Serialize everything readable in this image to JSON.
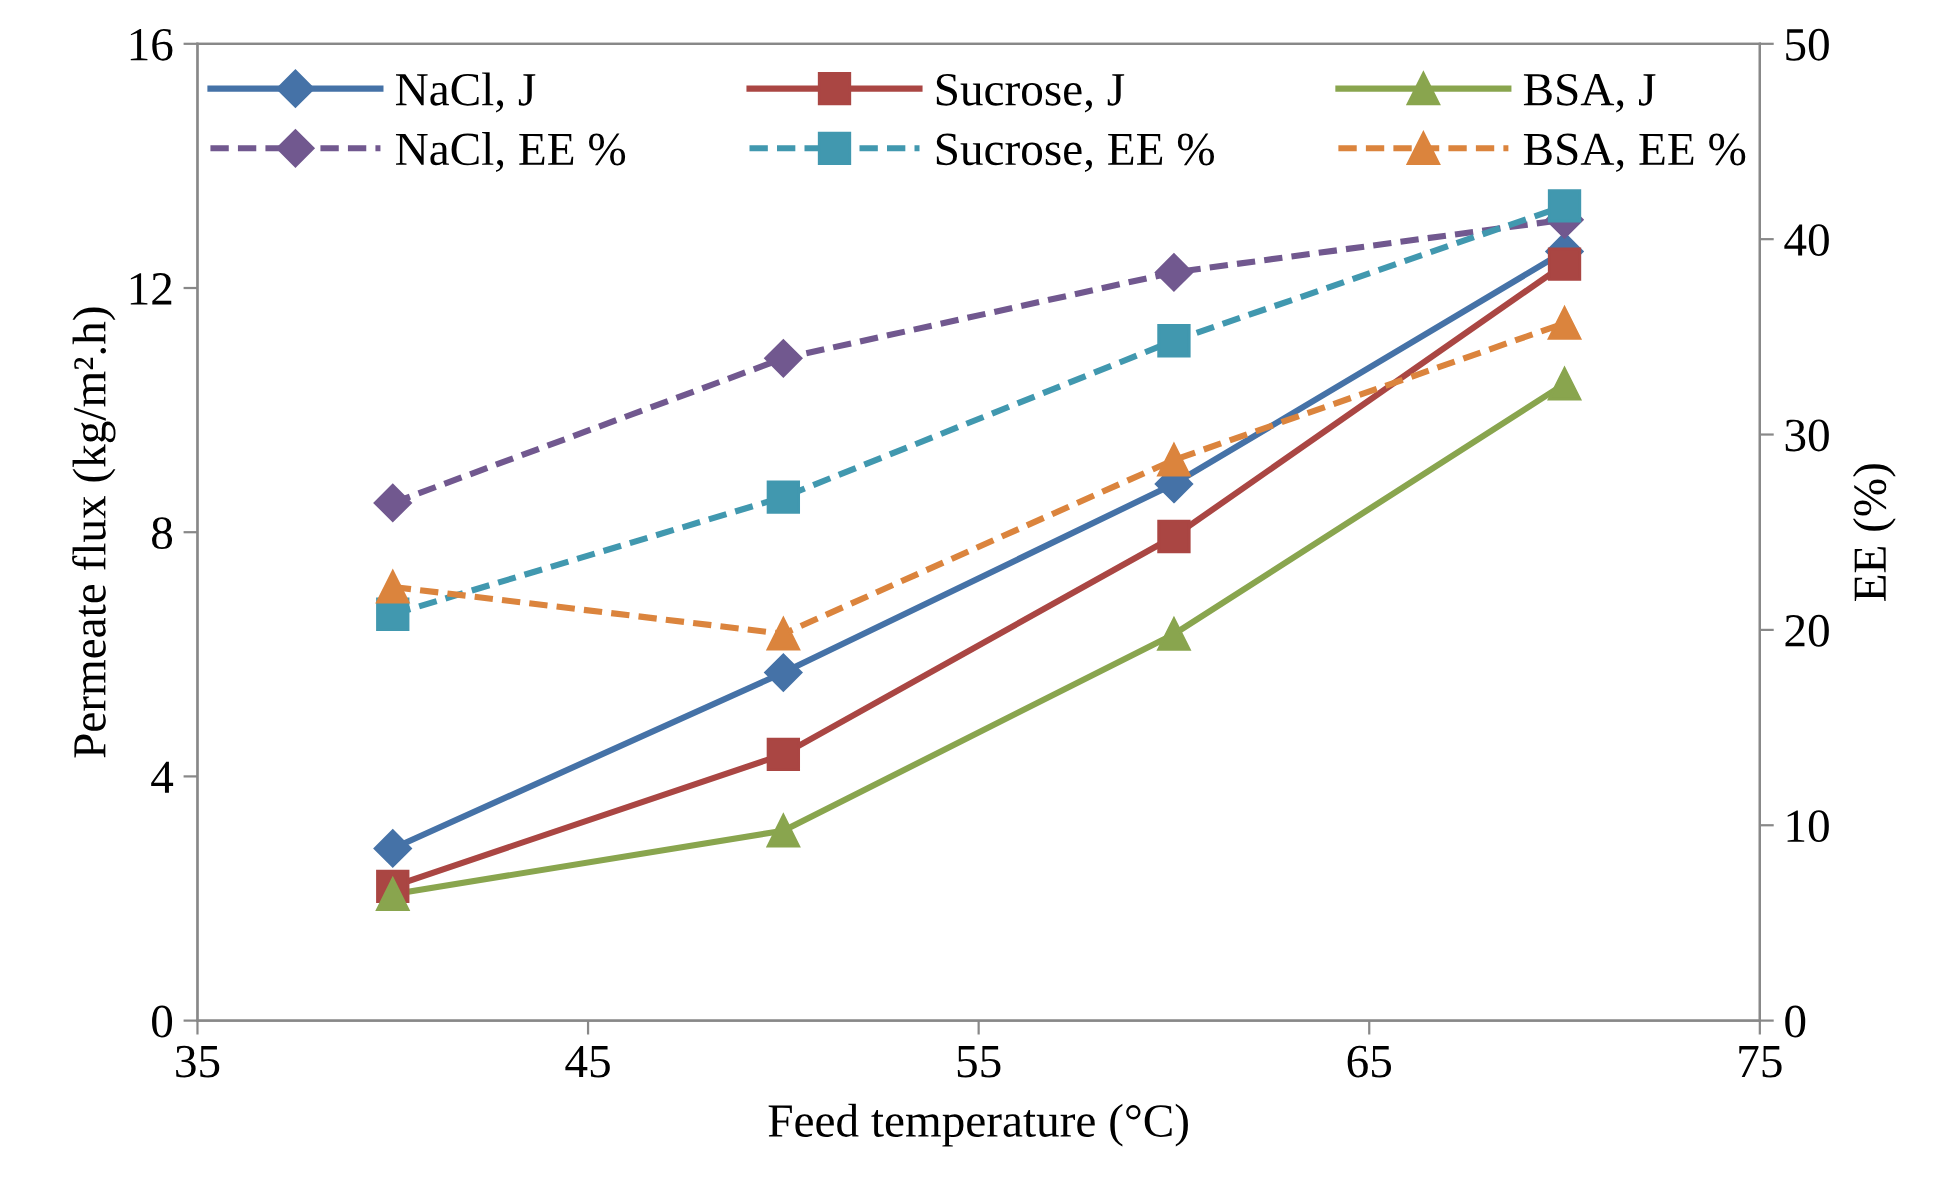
{
  "chart_data": {
    "type": "line",
    "xlabel": "Feed temperature (°C)",
    "ylabel": "Permeate flux (kg/m².h)",
    "y2label": "EE (%)",
    "x": [
      40,
      50,
      60,
      70
    ],
    "xlim": [
      35,
      75
    ],
    "xticks": [
      35,
      45,
      55,
      65,
      75
    ],
    "ylim": [
      0,
      16
    ],
    "yticks": [
      0,
      4,
      8,
      12,
      16
    ],
    "y2lim": [
      0,
      50
    ],
    "y2ticks": [
      0,
      10,
      20,
      30,
      40,
      50
    ],
    "grid": false,
    "legend": "top",
    "series": [
      {
        "name": "NaCl, J",
        "color": "#4572a7",
        "marker": "diamond",
        "line_style": "solid",
        "values": [
          2.82,
          5.7,
          8.79,
          12.6
        ]
      },
      {
        "name": "Sucrose, J",
        "color": "#aa4643",
        "marker": "square",
        "line_style": "solid",
        "values": [
          2.2,
          4.36,
          7.93,
          12.39
        ]
      },
      {
        "name": "BSA, J",
        "color": "#89a54e",
        "marker": "triangle",
        "line_style": "solid",
        "values": [
          2.07,
          3.11,
          6.33,
          10.43
        ]
      },
      {
        "name": "NaCl, EE %",
        "color": "#71588f",
        "marker": "diamond",
        "line_style": "dashed",
        "axis": "y2",
        "values": [
          26.5,
          33.9,
          38.3,
          41.0
        ]
      },
      {
        "name": "Sucrose, EE %",
        "color": "#4198af",
        "marker": "square",
        "line_style": "dashed",
        "axis": "y2",
        "values": [
          20.8,
          26.8,
          34.8,
          41.7
        ]
      },
      {
        "name": "BSA, EE %",
        "color": "#db843d",
        "marker": "triangle",
        "line_style": "dashed",
        "axis": "y2",
        "values": [
          22.2,
          19.8,
          28.7,
          35.7
        ]
      }
    ]
  }
}
